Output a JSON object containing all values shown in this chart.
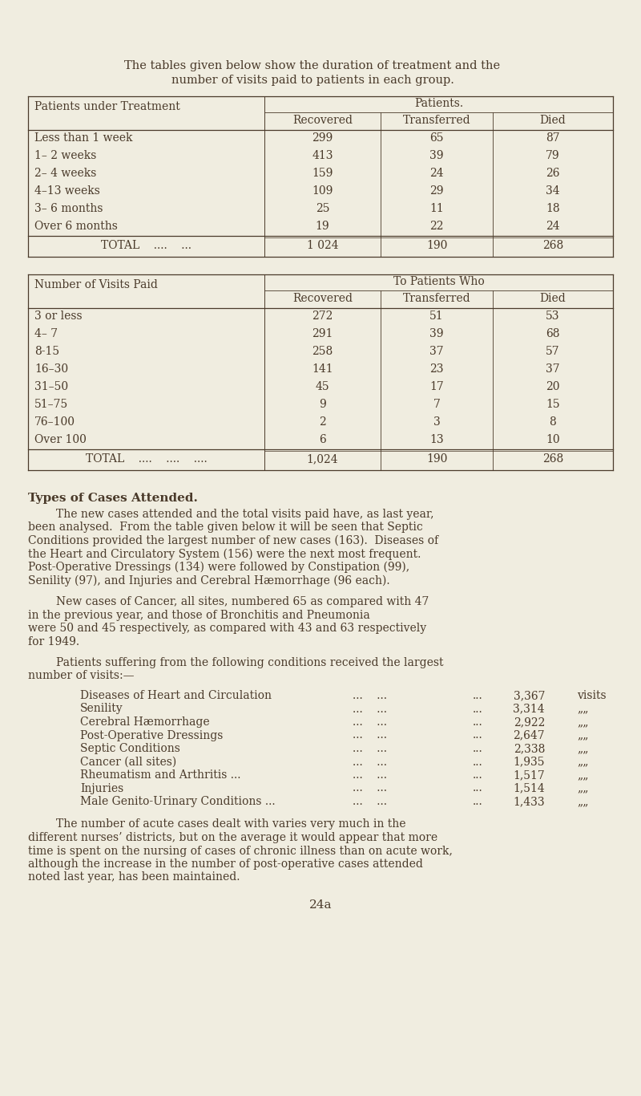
{
  "bg_color": "#f0ede0",
  "text_color": "#4a3a2a",
  "page_number": "24a",
  "intro_line1": "The tables given below show the duration of treatment and the",
  "intro_line2": "number of visits paid to patients in each group.",
  "table1": {
    "title_col": "Patients under Treatment",
    "header_group": "Patients.",
    "headers": [
      "Recovered",
      "Transferred",
      "Died"
    ],
    "rows": [
      [
        "Less than 1 week",
        "299",
        "65",
        "87"
      ],
      [
        "1– 2 weeks",
        "413",
        "39",
        "79"
      ],
      [
        "2– 4 weeks",
        "159",
        "24",
        "26"
      ],
      [
        "4–13 weeks",
        "109",
        "29",
        "34"
      ],
      [
        "3– 6 months",
        "25",
        "11",
        "18"
      ],
      [
        "Over 6 months",
        "19",
        "22",
        "24"
      ]
    ],
    "total_row": [
      "TOTAL",
      "1 024",
      "190",
      "268"
    ]
  },
  "table2": {
    "title_col": "Number of Visits Paid",
    "header_group": "To Patients Who",
    "headers": [
      "Recovered",
      "Transferred",
      "Died"
    ],
    "rows": [
      [
        "3 or less",
        "272",
        "51",
        "53"
      ],
      [
        "4– 7",
        "291",
        "39",
        "68"
      ],
      [
        "8-15",
        "258",
        "37",
        "57"
      ],
      [
        "16–30",
        "141",
        "23",
        "37"
      ],
      [
        "31–50",
        "45",
        "17",
        "20"
      ],
      [
        "51–75",
        "9",
        "7",
        "15"
      ],
      [
        "76–100",
        "2",
        "3",
        "8"
      ],
      [
        "Over 100",
        "6",
        "13",
        "10"
      ]
    ],
    "total_row": [
      "TOTAL",
      "1,024",
      "190",
      "268"
    ]
  },
  "section_title": "Types of Cases Attended.",
  "para1_lines": [
    "        The new cases attended and the total visits paid have, as last year,",
    "been analysed.  From the table given below it will be seen that Septic",
    "Conditions provided the largest number of new cases (163).  Diseases of",
    "the Heart and Circulatory System (156) were the next most frequent.",
    "Post-Operative Dressings (134) were followed by Constipation (99),",
    "Senility (97), and Injuries and Cerebral Hæmorrhage (96 each)."
  ],
  "para2_lines": [
    "        New cases of Cancer, all sites, numbered 65 as compared with 47",
    "in the previous year, and those of Bronchitis and Pneumonia",
    "were 50 and 45 respectively, as compared with 43 and 63 respectively",
    "for 1949."
  ],
  "para3_lines": [
    "        Patients suffering from the following conditions received the largest",
    "number of visits:—"
  ],
  "visits_list": [
    [
      "Diseases of Heart and Circulation",
      "3,367",
      "visits"
    ],
    [
      "Senility",
      "3,314",
      "„„"
    ],
    [
      "Cerebral Hæmorrhage",
      "2,922",
      "„„"
    ],
    [
      "Post-Operative Dressings",
      "2,647",
      "„„"
    ],
    [
      "Septic Conditions",
      "2,338",
      "„„"
    ],
    [
      "Cancer (all sites)",
      "1,935",
      "„„"
    ],
    [
      "Rheumatism and Arthritis ...",
      "1,517",
      "„„"
    ],
    [
      "Injuries",
      "1,514",
      "„„"
    ],
    [
      "Male Genito-Urinary Conditions ...",
      "1,433",
      "„„"
    ]
  ],
  "para4_lines": [
    "        The number of acute cases dealt with varies very much in the",
    "different nurses’ districts, but on the average it would appear that more",
    "time is spent on the nursing of cases of chronic illness than on acute work,",
    "although the increase in the number of post-operative cases attended",
    "noted last year, has been maintained."
  ]
}
